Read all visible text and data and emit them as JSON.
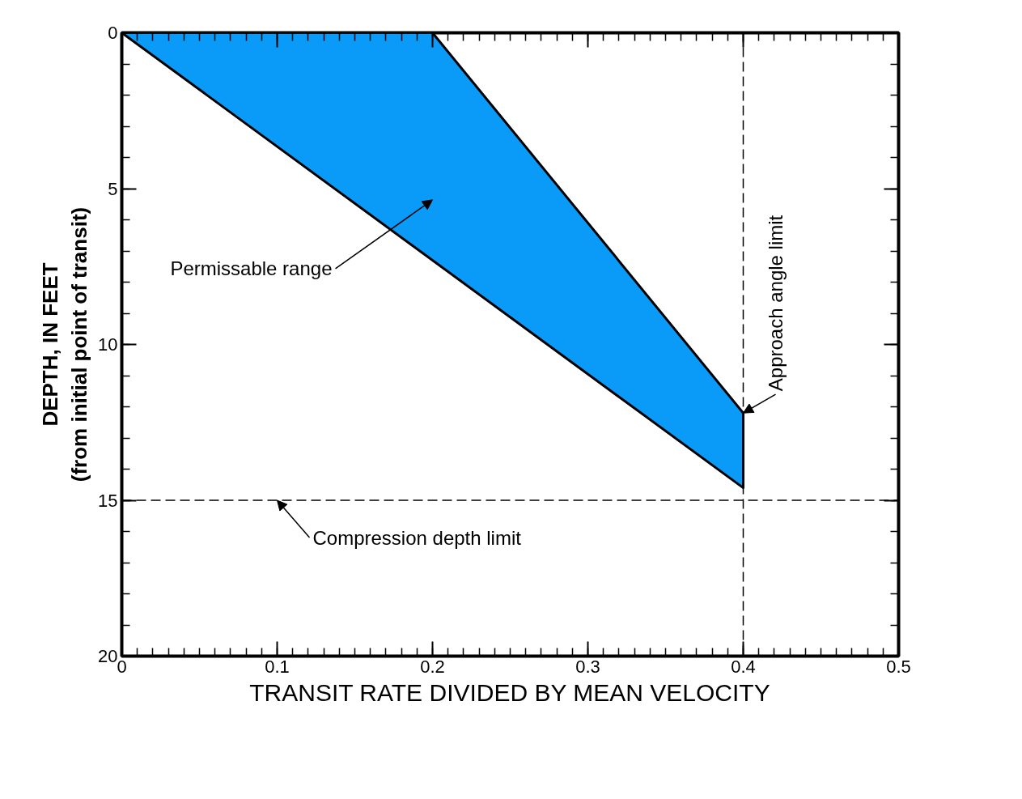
{
  "chart_data": {
    "type": "area",
    "xlabel": "TRANSIT RATE DIVIDED BY MEAN VELOCITY",
    "ylabel": "DEPTH, IN FEET\n(from initial point of transit)",
    "series": [
      {
        "color": "#0a9af7",
        "x": [
          0,
          0.2,
          0.4,
          0.4,
          0
        ],
        "values": [
          0,
          0,
          12.2,
          14.6,
          0
        ]
      }
    ],
    "xlim": [
      0,
      0.5
    ],
    "ylim": [
      20,
      0
    ],
    "xticks": [
      0,
      0.1,
      0.2,
      0.3,
      0.4,
      0.5
    ],
    "yticks": [
      0,
      5,
      10,
      15,
      20
    ],
    "ref_lines": [
      {
        "axis": "y",
        "value": 15,
        "line_style": "dashed"
      },
      {
        "axis": "x",
        "value": 0.4,
        "line_style": "dashed"
      }
    ],
    "annotations": [
      "Permissable range",
      {
        "text": "Compression depth limit",
        "x": 0.1,
        "y": 15
      },
      {
        "text": "Approach angle limit",
        "x": 0.4,
        "y": 12.2
      }
    ],
    "grid": false
  }
}
